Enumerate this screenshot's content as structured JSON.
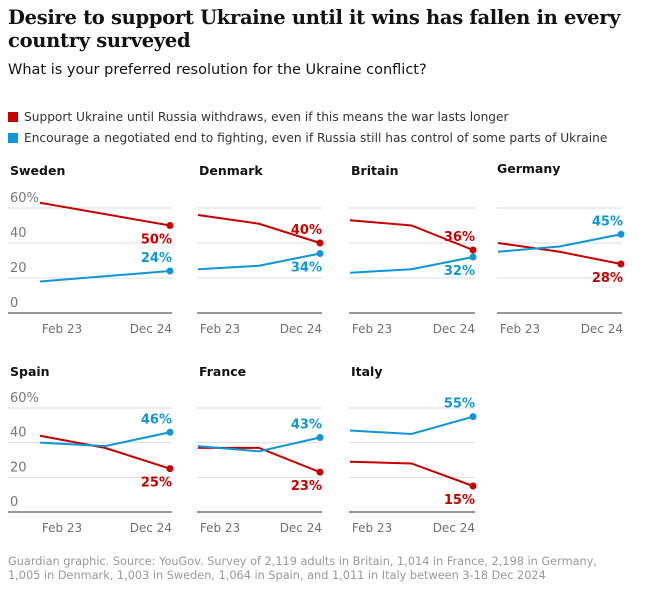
{
  "title": "Desire to support Ukraine until it wins has fallen in every country surveyed",
  "subtitle": "What is your preferred resolution for the Ukraine conflict?",
  "footer": "Guardian graphic. Source: YouGov. Survey of 2,119 adults in Britain, 1,014 in France, 2,198 in Germany, 1,005 in Denmark, 1,003 in Sweden, 1,064 in Spain, and 1,011 in Italy between 3-18 Dec 2024",
  "chart_data": {
    "type": "line",
    "layout": "small multiples",
    "ylim": [
      0,
      60
    ],
    "yticks": [
      "0",
      "20",
      "40",
      "60%"
    ],
    "xticks": [
      "Feb 23",
      "Dec 24"
    ],
    "grid": true,
    "legend": "top",
    "series_defs": [
      {
        "name": "Support Ukraine until Russia withdraws, even if this means the war lasts longer",
        "color": "#c70000"
      },
      {
        "name": "Encourage a negotiated end to fighting, even if Russia still has control of some parts of Ukraine",
        "color": "#0f96d7"
      }
    ],
    "panels": [
      {
        "country": "Sweden",
        "x": [
          0,
          2
        ],
        "support": [
          63,
          50
        ],
        "negotiate": [
          18,
          24
        ],
        "labels": [
          "50%",
          "24%"
        ]
      },
      {
        "country": "Denmark",
        "x": [
          0,
          1,
          2
        ],
        "support": [
          56,
          51,
          40
        ],
        "negotiate": [
          25,
          27,
          34
        ],
        "labels": [
          "40%",
          "34%"
        ]
      },
      {
        "country": "Britain",
        "x": [
          0,
          1,
          2
        ],
        "support": [
          53,
          50,
          36
        ],
        "negotiate": [
          23,
          25,
          32
        ],
        "labels": [
          "36%",
          "32%"
        ]
      },
      {
        "country": "Germany",
        "x": [
          0,
          1,
          2
        ],
        "support": [
          40,
          35,
          28
        ],
        "negotiate": [
          35,
          38,
          45
        ],
        "labels": [
          "28%",
          "45%"
        ]
      },
      {
        "country": "Spain",
        "x": [
          0,
          1,
          2
        ],
        "support": [
          44,
          37,
          25
        ],
        "negotiate": [
          40,
          38,
          46
        ],
        "labels": [
          "25%",
          "46%"
        ]
      },
      {
        "country": "France",
        "x": [
          0,
          1,
          2
        ],
        "support": [
          37,
          37,
          23
        ],
        "negotiate": [
          38,
          35,
          43
        ],
        "labels": [
          "23%",
          "43%"
        ]
      },
      {
        "country": "Italy",
        "x": [
          0,
          1,
          2
        ],
        "support": [
          29,
          28,
          15
        ],
        "negotiate": [
          47,
          45,
          55
        ],
        "labels": [
          "15%",
          "55%"
        ]
      }
    ]
  }
}
